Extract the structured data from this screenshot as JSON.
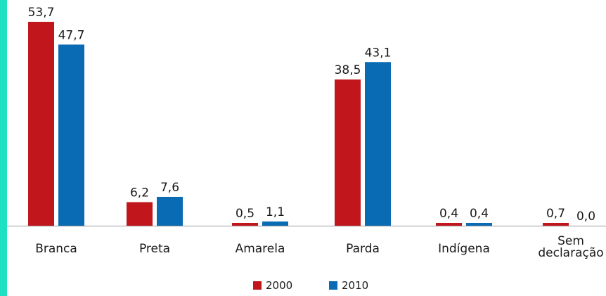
{
  "accent_color": "#1fe0c0",
  "chart_data": {
    "type": "bar",
    "categories": [
      [
        "Branca"
      ],
      [
        "Preta"
      ],
      [
        "Amarela"
      ],
      [
        "Parda"
      ],
      [
        "Indígena"
      ],
      [
        "Sem",
        "declaração"
      ]
    ],
    "series": [
      {
        "name": "2000",
        "color": "#c0161c",
        "values": [
          53.7,
          6.2,
          0.5,
          38.5,
          0.4,
          0.7
        ],
        "labels": [
          "53,7",
          "6,2",
          "0,5",
          "38,5",
          "0,4",
          "0,7"
        ]
      },
      {
        "name": "2010",
        "color": "#0a6bb5",
        "values": [
          47.7,
          7.6,
          1.1,
          43.1,
          0.4,
          0.0
        ],
        "labels": [
          "47,7",
          "7,6",
          "1,1",
          "43,1",
          "0,4",
          "0,0"
        ]
      }
    ],
    "ylim": [
      0,
      55
    ],
    "legend_position": "bottom-center",
    "grid": false
  }
}
